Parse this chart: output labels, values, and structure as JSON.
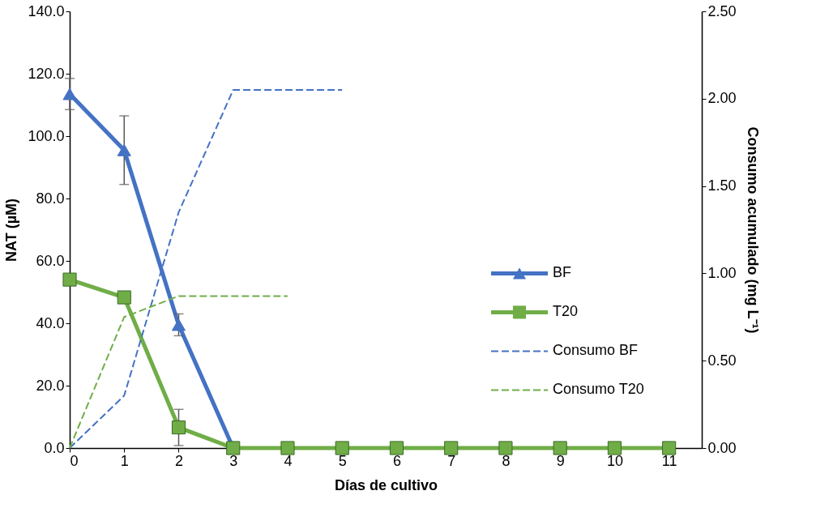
{
  "chart_data": {
    "type": "line",
    "xlabel": "Días de cultivo",
    "ylabel": "NAT (µM)",
    "y2label": "Consumo acumulado (mg L⁻¹)",
    "x": [
      0,
      1,
      2,
      3,
      4,
      5,
      6,
      7,
      8,
      9,
      10,
      11
    ],
    "xlim": [
      0,
      11.6
    ],
    "xticks": [
      0,
      1,
      2,
      3,
      4,
      5,
      6,
      7,
      8,
      9,
      10,
      11
    ],
    "ylim": [
      0,
      140
    ],
    "yticks": [
      {
        "value": 0,
        "label": "0.0"
      },
      {
        "value": 20,
        "label": "20.0"
      },
      {
        "value": 40,
        "label": "40.0"
      },
      {
        "value": 60,
        "label": "60.0"
      },
      {
        "value": 80,
        "label": "80.0"
      },
      {
        "value": 100,
        "label": "100.0"
      },
      {
        "value": 120,
        "label": "120.0"
      },
      {
        "value": 140,
        "label": "140.0"
      }
    ],
    "y2lim": [
      0,
      2.5
    ],
    "y2ticks": [
      {
        "value": 0,
        "label": "0.00"
      },
      {
        "value": 0.5,
        "label": "0.50"
      },
      {
        "value": 1,
        "label": "1.00"
      },
      {
        "value": 1.5,
        "label": "1.50"
      },
      {
        "value": 2,
        "label": "2.00"
      },
      {
        "value": 2.5,
        "label": "2.50"
      }
    ],
    "grid": false,
    "legend": "right",
    "series": [
      {
        "name": "BF",
        "color": "#4472c4",
        "marker": "triangle",
        "line_style": "solid",
        "values": [
          113.5,
          95.5,
          39.5,
          0,
          null,
          null,
          null,
          null,
          null,
          null,
          null,
          null
        ],
        "errors": [
          5,
          11,
          3.5,
          null,
          null,
          null,
          null,
          null,
          null,
          null,
          null,
          null
        ]
      },
      {
        "name": "T20",
        "color": "#70ad47",
        "marker": "square",
        "line_style": "solid",
        "values": [
          54,
          48.3,
          6.6,
          0,
          0,
          0,
          0,
          0,
          0,
          0,
          0,
          0
        ],
        "errors": [
          null,
          null,
          5.8,
          null,
          null,
          null,
          null,
          null,
          null,
          null,
          null,
          null
        ]
      },
      {
        "name": "Consumo BF",
        "color": "#4472c4",
        "marker": "none",
        "line_style": "dashed",
        "axis": "y2",
        "x": [
          0,
          1,
          2,
          3,
          4,
          5
        ],
        "values": [
          0,
          0.3,
          1.35,
          2.05,
          2.05,
          2.05
        ]
      },
      {
        "name": "Consumo T20",
        "color": "#70ad47",
        "marker": "none",
        "line_style": "dashed",
        "axis": "y2",
        "x": [
          0,
          1,
          2,
          3,
          4
        ],
        "values": [
          0,
          0.75,
          0.87,
          0.87,
          0.87
        ]
      }
    ]
  }
}
